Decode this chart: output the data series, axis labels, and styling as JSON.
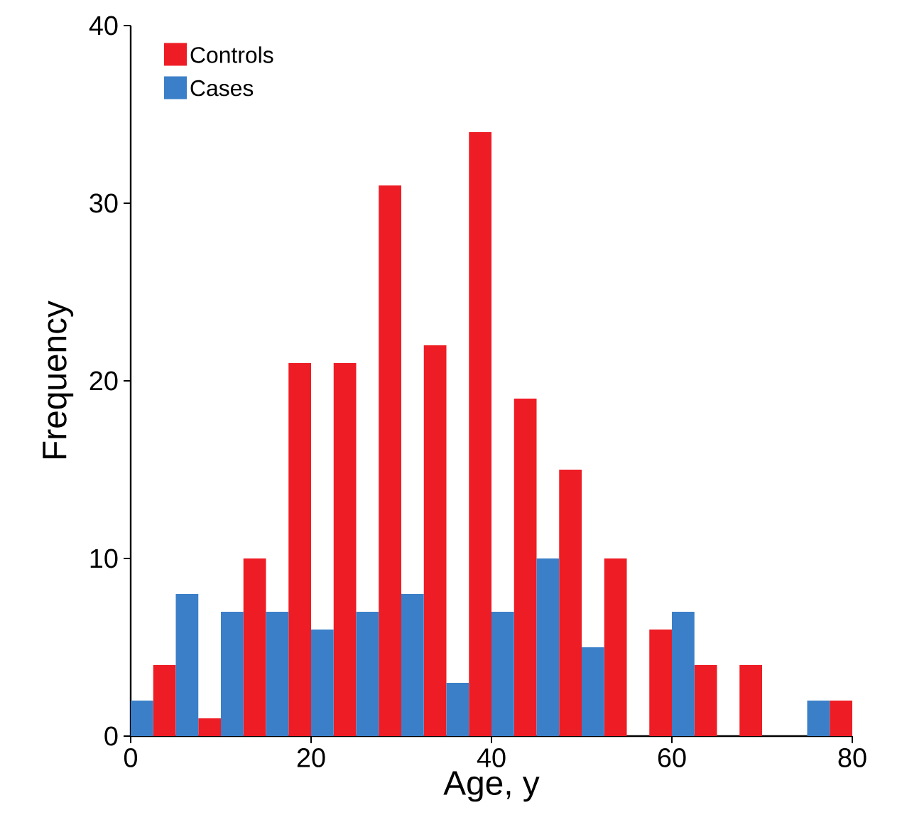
{
  "chart_data": {
    "type": "histogram",
    "xlabel": "Age, y",
    "ylabel": "Frequency",
    "bins": [
      0,
      5,
      10,
      15,
      20,
      25,
      30,
      35,
      40,
      45,
      50,
      55,
      60,
      65,
      70,
      75,
      80
    ],
    "series": [
      {
        "name": "Controls",
        "color": "#ee1c24",
        "values": [
          4,
          1,
          10,
          21,
          21,
          31,
          22,
          34,
          19,
          15,
          10,
          6,
          4,
          4,
          0,
          2
        ]
      },
      {
        "name": "Cases",
        "color": "#3a7fc8",
        "values": [
          2,
          8,
          7,
          7,
          6,
          7,
          8,
          3,
          7,
          10,
          5,
          0,
          7,
          0,
          0,
          2
        ]
      }
    ],
    "xlim": [
      0,
      80
    ],
    "ylim": [
      0,
      40
    ],
    "xticks": [
      0,
      20,
      40,
      60,
      80
    ],
    "yticks": [
      0,
      10,
      20,
      30,
      40
    ],
    "legend": "top left",
    "grid": false
  }
}
